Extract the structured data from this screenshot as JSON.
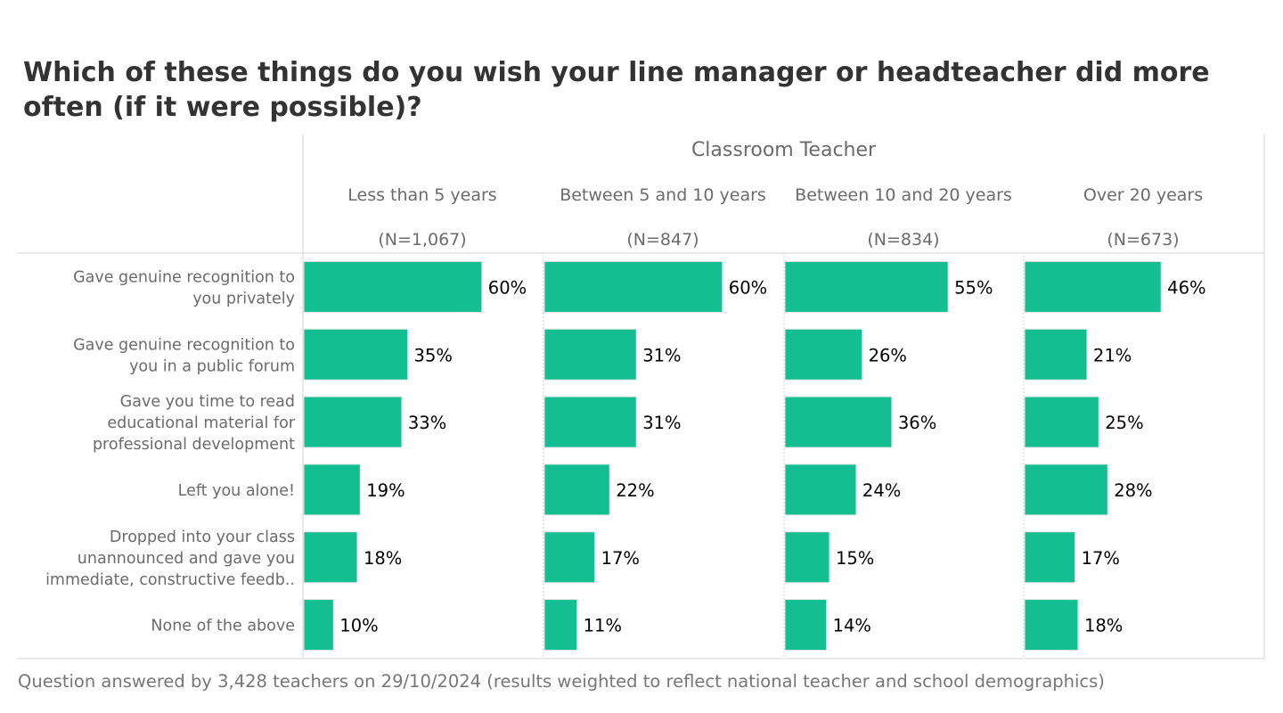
{
  "title": "Which of these things do you wish your line manager or headteacher did more often (if it were possible)?",
  "footer": "Question answered by 3,428 teachers on 29/10/2024 (results weighted to reflect national teacher and school demographics)",
  "colors": {
    "bar": "#13BF91",
    "grid_line": "#d6d6d6",
    "header_text": "#6b6b6b",
    "value_text": "#000000"
  },
  "chart_data": {
    "type": "bar",
    "orientation": "horizontal",
    "group_header": "Classroom Teacher",
    "xlim": [
      0,
      100
    ],
    "unit": "%",
    "categories": [
      [
        "Gave genuine recognition to",
        "you privately"
      ],
      [
        "Gave genuine recognition to",
        "you in a public forum"
      ],
      [
        "Gave you time to read",
        "educational material for",
        "professional development"
      ],
      [
        "Left you alone!"
      ],
      [
        "Dropped into your class",
        "unannounced and gave you",
        "immediate, constructive feedb.."
      ],
      [
        "None of the above"
      ]
    ],
    "series": [
      {
        "name": "Less than 5 years",
        "n_label": "(N=1,067)",
        "values": [
          60,
          35,
          33,
          19,
          18,
          10
        ]
      },
      {
        "name": "Between 5 and 10 years",
        "n_label": "(N=847)",
        "values": [
          60,
          31,
          31,
          22,
          17,
          11
        ]
      },
      {
        "name": "Between 10 and 20 years",
        "n_label": "(N=834)",
        "values": [
          55,
          26,
          36,
          24,
          15,
          14
        ]
      },
      {
        "name": "Over 20 years",
        "n_label": "(N=673)",
        "values": [
          46,
          21,
          25,
          28,
          17,
          18
        ]
      }
    ]
  }
}
